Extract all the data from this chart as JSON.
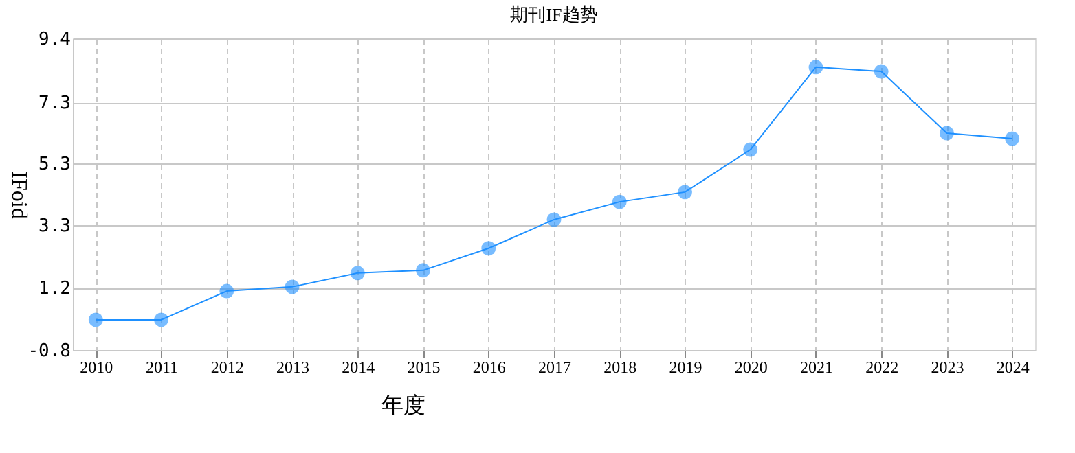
{
  "chart_data": {
    "type": "line",
    "title": "期刊IF趋势",
    "xlabel": "年度",
    "ylabel": "IFoid",
    "categories": [
      "2010",
      "2011",
      "2012",
      "2013",
      "2014",
      "2015",
      "2016",
      "2017",
      "2018",
      "2019",
      "2020",
      "2021",
      "2022",
      "2023",
      "2024"
    ],
    "series": [
      {
        "color": "#1e90ff",
        "values": [
          0.19,
          0.19,
          1.13,
          1.27,
          1.72,
          1.81,
          2.53,
          3.47,
          4.05,
          4.37,
          5.76,
          8.46,
          8.32,
          6.3,
          6.12
        ]
      }
    ],
    "ylim": [
      -0.8,
      9.4
    ],
    "yticks": [
      -0.8,
      {
        "value": 1.24,
        "label": "1.2"
      },
      {
        "value": 3.28,
        "label": "3.3"
      },
      {
        "value": 5.32,
        "label": "5.3"
      },
      7.3,
      9.4
    ],
    "grid": true,
    "marker": "circle",
    "line_style": "solid"
  }
}
